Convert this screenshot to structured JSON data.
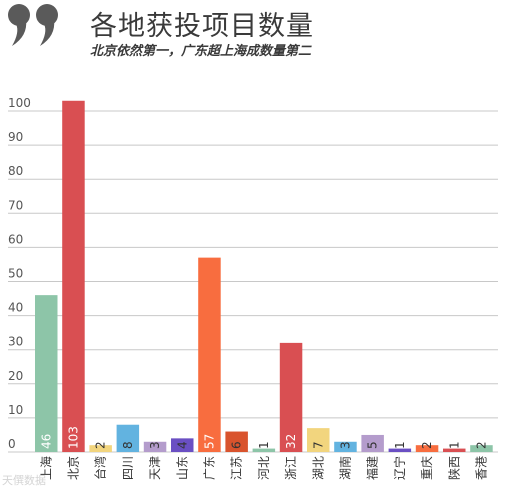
{
  "header": {
    "title": "各地获投项目数量",
    "subtitle": "北京依然第一，广东超上海成数量第二"
  },
  "watermark": "天僎数据",
  "chart_data": {
    "type": "bar",
    "title": "各地获投项目数量",
    "subtitle": "北京依然第一，广东超上海成数量第二",
    "xlabel": "",
    "ylabel": "",
    "ylim": [
      0,
      100
    ],
    "yticks": [
      0,
      10,
      20,
      30,
      40,
      50,
      60,
      70,
      80,
      90,
      100
    ],
    "grid": true,
    "categories": [
      "上海",
      "北京",
      "台湾",
      "四川",
      "天津",
      "山东",
      "广东",
      "江苏",
      "河北",
      "浙江",
      "湖北",
      "湖南",
      "福建",
      "辽宁",
      "重庆",
      "陕西",
      "香港"
    ],
    "values": [
      46,
      103,
      2,
      8,
      3,
      4,
      57,
      6,
      1,
      32,
      7,
      3,
      5,
      1,
      2,
      1,
      2
    ],
    "colors": [
      "#8dc5a8",
      "#d94f52",
      "#f2d57e",
      "#62b3e0",
      "#b49ccc",
      "#6a4fc3",
      "#f86d3f",
      "#d9532d",
      "#8dc5a8",
      "#d94f52",
      "#f2d57e",
      "#62b3e0",
      "#b49ccc",
      "#6a4fc3",
      "#f86d3f",
      "#d94f52",
      "#8dc5a8"
    ]
  }
}
